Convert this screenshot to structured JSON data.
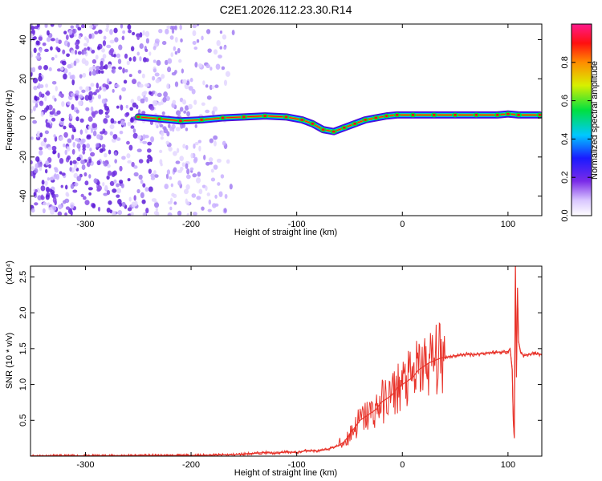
{
  "chart_data": [
    {
      "type": "heatmap",
      "title": "C2E1.2026.112.23.30.R14",
      "xlabel": "Height of straight line (km)",
      "ylabel": "Frequency (Hz)",
      "xlim": [
        -352,
        132
      ],
      "ylim": [
        -50,
        48
      ],
      "xticks": [
        -300,
        -200,
        -100,
        0,
        100
      ],
      "yticks": [
        40,
        20,
        0,
        -20,
        -40
      ],
      "colorbar": {
        "label": "Normalized spectral amplitude",
        "range": [
          0,
          1
        ],
        "ticks": [
          0.0,
          0.2,
          0.4,
          0.6,
          0.8
        ],
        "tick_labels": [
          "0.0",
          "0.2",
          "0.4",
          "0.6",
          "0.8"
        ],
        "colormap": "rainbow: white → violet → blue → cyan → green → yellow → red → magenta"
      },
      "ridge": {
        "description": "main spectral ridge (frequency in Hz vs height in km)",
        "x": [
          -250,
          -230,
          -210,
          -190,
          -170,
          -150,
          -130,
          -110,
          -95,
          -85,
          -75,
          -65,
          -55,
          -45,
          -35,
          -25,
          -15,
          -5,
          10,
          30,
          50,
          70,
          90,
          100,
          110,
          130
        ],
        "y": [
          0.5,
          -0.5,
          -1.5,
          -1,
          0,
          0.5,
          1,
          0.5,
          -1,
          -3,
          -6,
          -7,
          -5,
          -3,
          -1,
          0,
          1,
          1.5,
          1.5,
          1.5,
          1.5,
          1.5,
          1.5,
          2,
          1.5,
          1.5
        ]
      },
      "noise_region_x": [
        -352,
        -160
      ]
    },
    {
      "type": "line",
      "xlabel": "Height of straight line (km)",
      "ylabel": "SNR (10 * v/v)",
      "y_multiplier": "(x10⁴)",
      "xlim": [
        -352,
        132
      ],
      "ylim": [
        0,
        2.65
      ],
      "xticks": [
        -300,
        -200,
        -100,
        0,
        100
      ],
      "yticks": [
        0.5,
        1.0,
        1.5,
        2.0,
        2.5
      ],
      "ytick_labels": [
        "0.5",
        "1.0",
        "1.5",
        "2.0",
        "2.5"
      ],
      "color": "#e8332a",
      "series": [
        {
          "x": [
            -352,
            -300,
            -250,
            -200,
            -180,
            -160,
            -150,
            -130,
            -120,
            -110,
            -100,
            -90,
            -80,
            -70,
            -60,
            -55,
            -50,
            -45,
            -40,
            -35,
            -30,
            -25,
            -20,
            -15,
            -10,
            -5,
            0,
            5,
            10,
            15,
            20,
            25,
            30,
            35,
            40,
            50,
            60,
            70,
            80,
            90,
            95,
            100,
            102,
            104,
            105,
            106,
            107,
            108,
            109,
            110,
            112,
            115,
            120,
            125,
            132
          ],
          "y": [
            0.005,
            0.005,
            0.01,
            0.01,
            0.015,
            0.02,
            0.03,
            0.05,
            0.04,
            0.06,
            0.05,
            0.08,
            0.07,
            0.1,
            0.15,
            0.2,
            0.3,
            0.4,
            0.5,
            0.55,
            0.6,
            0.65,
            0.75,
            0.8,
            0.85,
            0.95,
            1.0,
            1.05,
            1.1,
            1.2,
            1.25,
            1.3,
            1.33,
            1.36,
            1.38,
            1.4,
            1.42,
            1.42,
            1.44,
            1.45,
            1.45,
            1.46,
            1.5,
            1.2,
            0.5,
            0.25,
            2.65,
            1.1,
            2.35,
            1.6,
            1.45,
            1.4,
            1.42,
            1.43,
            1.42
          ]
        }
      ]
    }
  ]
}
